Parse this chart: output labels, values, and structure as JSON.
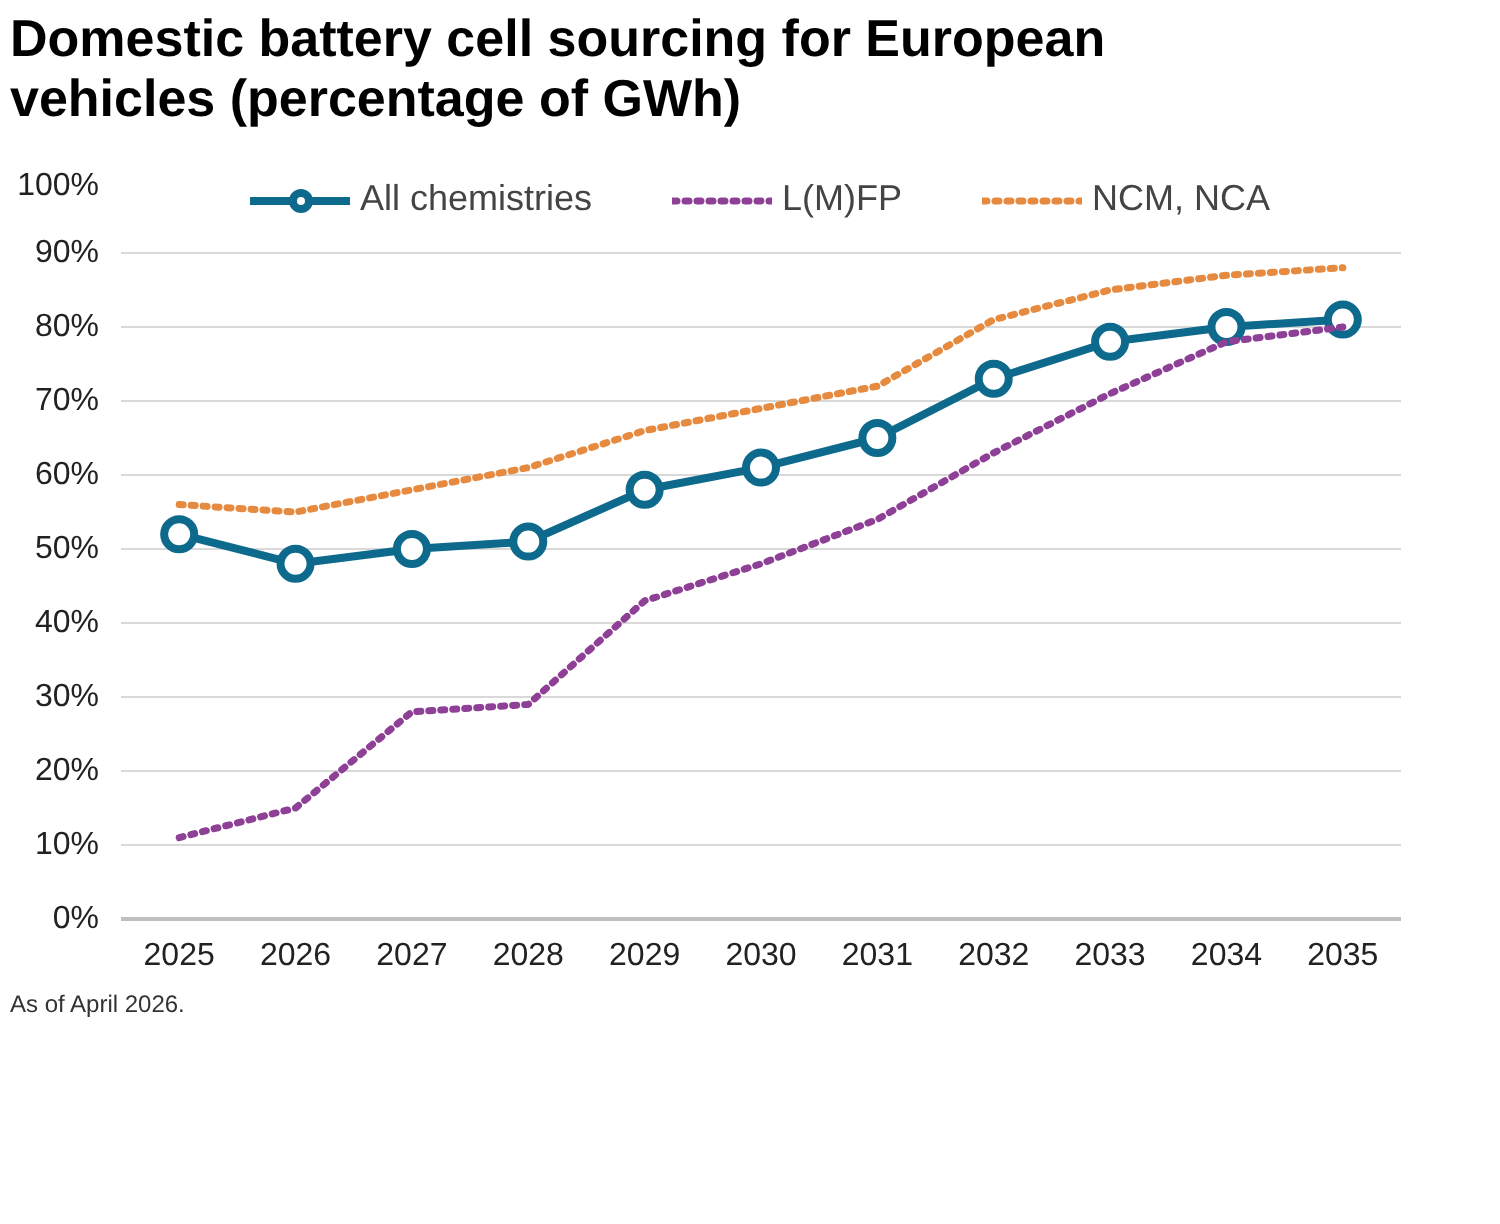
{
  "chart_data": {
    "type": "line",
    "title": "Domestic battery cell sourcing for European vehicles (percentage of GWh)",
    "categories": [
      "2025",
      "2026",
      "2027",
      "2028",
      "2029",
      "2030",
      "2031",
      "2032",
      "2033",
      "2034",
      "2035"
    ],
    "series": [
      {
        "name": "All chemistries",
        "color": "#0e6a8c",
        "marker": "circle",
        "line_style": "solid",
        "values": [
          52,
          48,
          50,
          51,
          58,
          61,
          65,
          73,
          78,
          80,
          81
        ]
      },
      {
        "name": "L(M)FP",
        "color": "#8e3f96",
        "marker": "none",
        "line_style": "dotted",
        "values": [
          11,
          15,
          28,
          29,
          43,
          48,
          54,
          63,
          71,
          78,
          80
        ]
      },
      {
        "name": "NCM, NCA",
        "color": "#e58a3f",
        "marker": "none",
        "line_style": "dotted",
        "values": [
          56,
          55,
          58,
          61,
          66,
          69,
          72,
          81,
          85,
          87,
          88
        ]
      }
    ],
    "ylim": [
      0,
      100
    ],
    "yticks": [
      {
        "value": 0,
        "label": "0%"
      },
      {
        "value": 10,
        "label": "10%"
      },
      {
        "value": 20,
        "label": "20%"
      },
      {
        "value": 30,
        "label": "30%"
      },
      {
        "value": 40,
        "label": "40%"
      },
      {
        "value": 50,
        "label": "50%"
      },
      {
        "value": 60,
        "label": "60%"
      },
      {
        "value": 70,
        "label": "70%"
      },
      {
        "value": 80,
        "label": "80%"
      },
      {
        "value": 90,
        "label": "90%"
      },
      {
        "value": 100,
        "label": "100%"
      }
    ],
    "grid": "y",
    "legend": "top",
    "annotations": [
      "As of April 2026."
    ]
  }
}
